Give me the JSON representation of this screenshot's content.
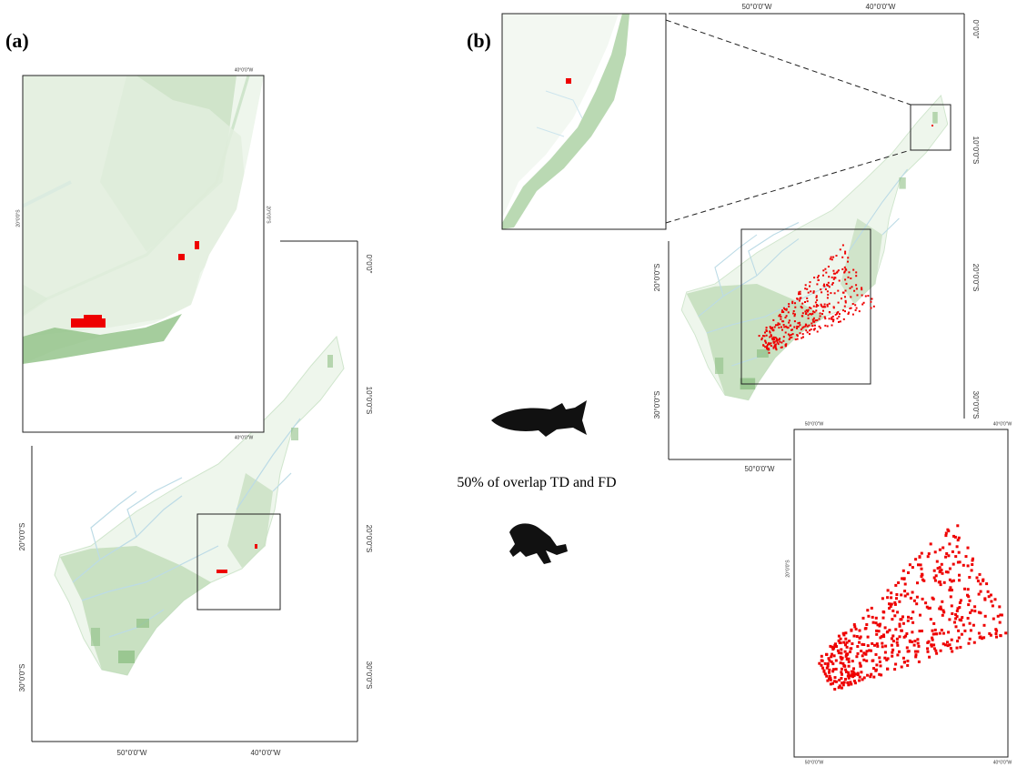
{
  "panel_a": {
    "label": "(a)",
    "main_map": {
      "x_labels": [
        "50°0'0\"W",
        "40°0'0\"W"
      ],
      "right_labels": [
        "0°0'0\"",
        "10°0'0\"S",
        "20°0'0\"S",
        "30°0'0\"S"
      ],
      "left_labels": [
        "20°0'0\"S",
        "30°0'0\"S"
      ]
    },
    "inset": {
      "top_label": "40°0'0\"W",
      "bottom_label": "40°0'0\"W",
      "left_label": "20°0'0\"S",
      "right_label": "20°0'0\"S"
    }
  },
  "panel_b": {
    "label": "(b)",
    "main_map": {
      "top_labels": [
        "50°0'0\"W",
        "40°0'0\"W"
      ],
      "bottom_label": "50°0'0\"W",
      "right_labels": [
        "0°0'0\"",
        "10°0'0\"S",
        "20°0'0\"S",
        "30°0'0\"S"
      ],
      "left_labels": [
        "20°0'0\"S",
        "30°0'0\"S"
      ]
    },
    "zoom_inset": {
      "top_labels": [
        "50°0'0\"W",
        "40°0'0\"W"
      ],
      "bottom_labels": [
        "50°0'0\"W",
        "40°0'0\"W"
      ],
      "left_label": "20°0'0\"S"
    }
  },
  "caption": "50% of overlap TD and FD"
}
